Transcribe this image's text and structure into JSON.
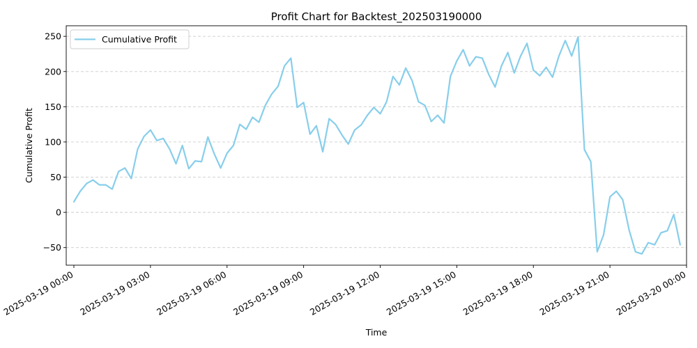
{
  "chart_data": {
    "type": "line",
    "title": "Profit Chart for Backtest_202503190000",
    "xlabel": "Time",
    "ylabel": "Cumulative Profit",
    "x_start": "2025-03-19 00:00",
    "x_step_minutes": 15,
    "xlim": [
      -18,
      1440
    ],
    "ylim": [
      -75,
      265
    ],
    "x_ticks": [
      {
        "minutes": 0,
        "label": "2025-03-19 00:00"
      },
      {
        "minutes": 180,
        "label": "2025-03-19 03:00"
      },
      {
        "minutes": 360,
        "label": "2025-03-19 06:00"
      },
      {
        "minutes": 540,
        "label": "2025-03-19 09:00"
      },
      {
        "minutes": 720,
        "label": "2025-03-19 12:00"
      },
      {
        "minutes": 900,
        "label": "2025-03-19 15:00"
      },
      {
        "minutes": 1080,
        "label": "2025-03-19 18:00"
      },
      {
        "minutes": 1260,
        "label": "2025-03-19 21:00"
      },
      {
        "minutes": 1440,
        "label": "2025-03-20 00:00"
      }
    ],
    "y_ticks": [
      {
        "value": -50,
        "label": "−50"
      },
      {
        "value": 0,
        "label": "0"
      },
      {
        "value": 50,
        "label": "50"
      },
      {
        "value": 100,
        "label": "100"
      },
      {
        "value": 150,
        "label": "150"
      },
      {
        "value": 200,
        "label": "200"
      },
      {
        "value": 250,
        "label": "250"
      }
    ],
    "grid": "y-dashed",
    "legend": "top-left",
    "series": [
      {
        "name": "Cumulative Profit",
        "color": "#87ceeb",
        "values": [
          15,
          30,
          41,
          46,
          39,
          39,
          33,
          58,
          63,
          48,
          90,
          108,
          117,
          102,
          105,
          90,
          69,
          95,
          62,
          73,
          72,
          107,
          83,
          63,
          84,
          95,
          125,
          118,
          135,
          128,
          152,
          168,
          179,
          208,
          219,
          149,
          156,
          111,
          123,
          86,
          133,
          125,
          110,
          97,
          117,
          124,
          138,
          149,
          140,
          157,
          193,
          181,
          205,
          187,
          157,
          152,
          129,
          138,
          127,
          193,
          215,
          231,
          208,
          221,
          219,
          196,
          178,
          208,
          227,
          198,
          222,
          240,
          202,
          194,
          206,
          192,
          222,
          244,
          222,
          249,
          89,
          72,
          -56,
          -32,
          22,
          30,
          18,
          -25,
          -56,
          -59,
          -43,
          -46,
          -29,
          -26,
          -3,
          -46
        ]
      }
    ]
  }
}
